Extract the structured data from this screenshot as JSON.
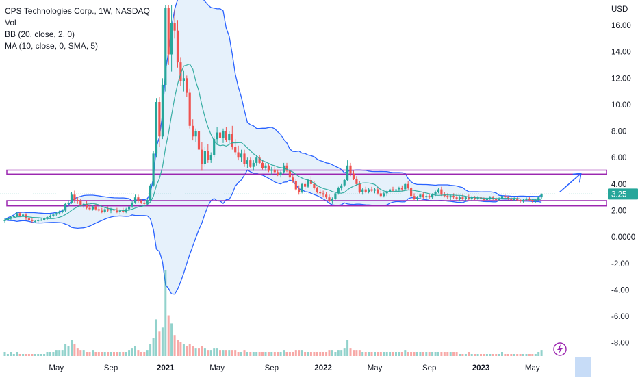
{
  "header": {
    "symbol_line": "CPS Technologies Corp., 1W, NASDAQ",
    "vol_label": "Vol",
    "bb_label": "BB (20, close, 2, 0)",
    "ma_label": "MA (10, close, 0, SMA, 5)"
  },
  "price_axis": {
    "currency": "USD",
    "ticks": [
      "16.00",
      "14.00",
      "12.00",
      "10.00",
      "8.00",
      "6.00",
      "4.00",
      "2.00",
      "0.0000",
      "-2.00",
      "-4.00",
      "-6.00",
      "-8.00"
    ],
    "tick_values": [
      16,
      14,
      12,
      10,
      8,
      6,
      4,
      2,
      0,
      -2,
      -4,
      -6,
      -8
    ],
    "last_price_label": "3.25",
    "last_price": 3.25,
    "ylim": [
      -9.0,
      17.5
    ]
  },
  "time_axis": {
    "labels": [
      "May",
      "Sep",
      "2021",
      "May",
      "Sep",
      "2022",
      "May",
      "Sep",
      "2023",
      "May"
    ],
    "label_weeks": [
      17,
      35,
      53,
      70,
      88,
      105,
      122,
      140,
      157,
      174
    ]
  },
  "colors": {
    "up": "#26a69a",
    "down": "#ef5350",
    "bb_band": "#2962ff",
    "bb_fill": "#e3f0fb",
    "zone": "#9c27b0",
    "arrow": "#2962ff",
    "price_tag": "#26a69a"
  },
  "chart_data": {
    "type": "candlestick",
    "x_unit": "week index (weekly bars)",
    "zones": [
      {
        "low": 4.75,
        "high": 5.05
      },
      {
        "low": 2.35,
        "high": 2.75
      }
    ],
    "projection_arrow": {
      "from_week": 183,
      "from_price": 3.4,
      "to_week": 190,
      "to_price": 4.8
    },
    "bars": [
      [
        1.2,
        1.4,
        1.1,
        1.3,
        2
      ],
      [
        1.3,
        1.5,
        1.2,
        1.4,
        1
      ],
      [
        1.4,
        1.6,
        1.3,
        1.5,
        2
      ],
      [
        1.5,
        1.7,
        1.4,
        1.6,
        1
      ],
      [
        1.6,
        1.9,
        1.5,
        1.8,
        2
      ],
      [
        1.8,
        1.9,
        1.5,
        1.6,
        1
      ],
      [
        1.6,
        1.8,
        1.5,
        1.7,
        1
      ],
      [
        1.7,
        1.8,
        1.3,
        1.4,
        1
      ],
      [
        1.4,
        1.5,
        1.2,
        1.3,
        1
      ],
      [
        1.3,
        1.4,
        1.1,
        1.2,
        1
      ],
      [
        1.2,
        1.3,
        1.1,
        1.2,
        1
      ],
      [
        1.2,
        1.4,
        1.1,
        1.3,
        1
      ],
      [
        1.3,
        1.4,
        1.2,
        1.3,
        1
      ],
      [
        1.3,
        1.5,
        1.2,
        1.4,
        1
      ],
      [
        1.4,
        1.6,
        1.3,
        1.5,
        2
      ],
      [
        1.5,
        1.7,
        1.4,
        1.6,
        2
      ],
      [
        1.6,
        1.8,
        1.5,
        1.7,
        2
      ],
      [
        1.7,
        1.9,
        1.6,
        1.8,
        3
      ],
      [
        1.8,
        2.0,
        1.7,
        1.9,
        3
      ],
      [
        1.9,
        2.1,
        1.8,
        2.0,
        3
      ],
      [
        2.0,
        2.6,
        1.9,
        2.5,
        6
      ],
      [
        2.5,
        2.8,
        2.3,
        2.6,
        5
      ],
      [
        2.6,
        3.4,
        2.5,
        3.2,
        8
      ],
      [
        3.2,
        3.5,
        2.6,
        2.8,
        6
      ],
      [
        2.8,
        3.0,
        2.5,
        2.7,
        4
      ],
      [
        2.7,
        2.9,
        2.3,
        2.4,
        3
      ],
      [
        2.4,
        2.6,
        2.2,
        2.5,
        3
      ],
      [
        2.5,
        2.7,
        2.1,
        2.2,
        2
      ],
      [
        2.2,
        2.4,
        2.0,
        2.1,
        2
      ],
      [
        2.1,
        2.4,
        2.0,
        2.3,
        3
      ],
      [
        2.3,
        2.5,
        2.0,
        2.1,
        2
      ],
      [
        2.1,
        2.3,
        1.9,
        2.0,
        2
      ],
      [
        2.0,
        2.2,
        1.8,
        1.9,
        2
      ],
      [
        1.9,
        2.2,
        1.8,
        2.1,
        2
      ],
      [
        2.1,
        2.3,
        1.9,
        2.0,
        2
      ],
      [
        2.0,
        2.2,
        1.8,
        2.1,
        2
      ],
      [
        2.1,
        2.3,
        1.9,
        2.0,
        2
      ],
      [
        2.0,
        2.2,
        1.8,
        1.9,
        2
      ],
      [
        1.9,
        2.1,
        1.7,
        2.0,
        2
      ],
      [
        2.0,
        2.2,
        1.8,
        1.9,
        2
      ],
      [
        1.9,
        2.2,
        1.8,
        2.1,
        2
      ],
      [
        2.1,
        2.4,
        2.0,
        2.3,
        3
      ],
      [
        2.3,
        2.7,
        2.2,
        2.6,
        4
      ],
      [
        2.6,
        3.2,
        2.5,
        3.0,
        5
      ],
      [
        3.0,
        3.2,
        2.6,
        2.7,
        3
      ],
      [
        2.7,
        2.9,
        2.5,
        2.6,
        2
      ],
      [
        2.6,
        2.8,
        2.4,
        2.5,
        2
      ],
      [
        2.5,
        2.9,
        2.4,
        2.8,
        3
      ],
      [
        2.8,
        4.0,
        2.7,
        3.9,
        6
      ],
      [
        3.9,
        6.5,
        3.8,
        6.3,
        9
      ],
      [
        6.3,
        10.5,
        6.0,
        10.2,
        18
      ],
      [
        10.2,
        10.6,
        6.8,
        7.6,
        12
      ],
      [
        7.6,
        12.0,
        7.4,
        11.5,
        14
      ],
      [
        11.5,
        17.5,
        11.0,
        17.3,
        42
      ],
      [
        17.3,
        17.5,
        13.0,
        13.8,
        20
      ],
      [
        13.8,
        17.5,
        12.5,
        16.2,
        16
      ],
      [
        16.2,
        17.2,
        15.0,
        15.6,
        10
      ],
      [
        15.6,
        16.4,
        12.8,
        13.2,
        8
      ],
      [
        13.2,
        13.6,
        11.4,
        11.8,
        7
      ],
      [
        11.8,
        12.6,
        11.0,
        12.0,
        6
      ],
      [
        12.0,
        12.2,
        10.6,
        10.9,
        5
      ],
      [
        10.9,
        11.2,
        8.2,
        8.4,
        6
      ],
      [
        8.4,
        8.9,
        7.3,
        7.6,
        5
      ],
      [
        7.6,
        8.2,
        7.2,
        8.0,
        4
      ],
      [
        8.0,
        8.3,
        6.4,
        6.6,
        4
      ],
      [
        6.6,
        7.2,
        5.0,
        5.5,
        5
      ],
      [
        5.5,
        6.8,
        5.3,
        6.5,
        4
      ],
      [
        6.5,
        7.0,
        5.6,
        5.8,
        3
      ],
      [
        5.8,
        6.4,
        5.6,
        6.2,
        3
      ],
      [
        6.2,
        7.6,
        6.0,
        7.4,
        4
      ],
      [
        7.4,
        8.3,
        7.0,
        7.9,
        4
      ],
      [
        7.9,
        9.0,
        7.2,
        7.5,
        3
      ],
      [
        7.5,
        8.2,
        7.1,
        8.0,
        3
      ],
      [
        8.0,
        8.3,
        7.2,
        7.3,
        3
      ],
      [
        7.3,
        8.0,
        7.0,
        7.8,
        3
      ],
      [
        7.8,
        8.4,
        6.6,
        6.8,
        3
      ],
      [
        6.8,
        7.4,
        6.2,
        6.4,
        3
      ],
      [
        6.4,
        6.9,
        5.8,
        6.0,
        2
      ],
      [
        6.0,
        6.6,
        5.7,
        6.3,
        2
      ],
      [
        6.3,
        6.6,
        5.3,
        5.5,
        3
      ],
      [
        5.5,
        6.0,
        5.2,
        5.8,
        2
      ],
      [
        5.8,
        6.0,
        5.2,
        5.3,
        2
      ],
      [
        5.3,
        5.8,
        5.0,
        5.6,
        2
      ],
      [
        5.6,
        6.2,
        5.4,
        6.0,
        2
      ],
      [
        6.0,
        6.2,
        5.5,
        5.6,
        2
      ],
      [
        5.6,
        5.8,
        5.1,
        5.2,
        2
      ],
      [
        5.2,
        5.6,
        5.0,
        5.4,
        2
      ],
      [
        5.4,
        5.5,
        4.9,
        5.0,
        2
      ],
      [
        5.0,
        5.3,
        4.7,
        5.1,
        2
      ],
      [
        5.1,
        5.4,
        4.8,
        4.9,
        2
      ],
      [
        4.9,
        5.1,
        4.6,
        4.7,
        2
      ],
      [
        4.7,
        5.0,
        4.5,
        4.9,
        2
      ],
      [
        4.9,
        5.6,
        4.8,
        5.4,
        3
      ],
      [
        5.4,
        5.6,
        4.9,
        5.0,
        2
      ],
      [
        5.0,
        5.2,
        4.4,
        4.5,
        2
      ],
      [
        4.5,
        4.7,
        4.1,
        4.2,
        2
      ],
      [
        4.2,
        4.4,
        3.5,
        3.6,
        3
      ],
      [
        3.6,
        3.9,
        3.2,
        3.4,
        3
      ],
      [
        3.4,
        4.1,
        3.3,
        4.0,
        3
      ],
      [
        4.0,
        4.2,
        3.6,
        3.8,
        2
      ],
      [
        3.8,
        4.4,
        3.7,
        4.3,
        2
      ],
      [
        4.3,
        4.6,
        3.9,
        4.0,
        2
      ],
      [
        4.0,
        4.2,
        3.6,
        3.7,
        2
      ],
      [
        3.7,
        3.8,
        3.3,
        3.4,
        2
      ],
      [
        3.4,
        3.6,
        3.1,
        3.3,
        2
      ],
      [
        3.3,
        3.5,
        3.0,
        3.2,
        2
      ],
      [
        3.2,
        3.4,
        2.9,
        3.0,
        2
      ],
      [
        3.0,
        3.2,
        2.6,
        2.7,
        3
      ],
      [
        2.7,
        3.0,
        2.5,
        2.9,
        3
      ],
      [
        2.9,
        3.4,
        2.8,
        3.3,
        2
      ],
      [
        3.3,
        3.8,
        3.2,
        3.7,
        3
      ],
      [
        3.7,
        4.0,
        3.5,
        3.9,
        3
      ],
      [
        3.9,
        4.4,
        3.8,
        4.3,
        4
      ],
      [
        4.3,
        5.8,
        4.2,
        5.4,
        8
      ],
      [
        5.4,
        5.6,
        4.6,
        4.8,
        4
      ],
      [
        4.8,
        5.0,
        4.3,
        4.4,
        3
      ],
      [
        4.4,
        4.6,
        3.9,
        4.0,
        3
      ],
      [
        4.0,
        4.2,
        3.3,
        3.4,
        3
      ],
      [
        3.4,
        3.7,
        3.2,
        3.6,
        2
      ],
      [
        3.6,
        3.8,
        3.3,
        3.4,
        2
      ],
      [
        3.4,
        3.7,
        3.3,
        3.6,
        2
      ],
      [
        3.6,
        3.8,
        3.4,
        3.5,
        2
      ],
      [
        3.5,
        3.7,
        3.3,
        3.6,
        2
      ],
      [
        3.6,
        3.8,
        3.2,
        3.3,
        2
      ],
      [
        3.3,
        3.5,
        3.0,
        3.1,
        2
      ],
      [
        3.1,
        3.4,
        3.0,
        3.3,
        2
      ],
      [
        3.3,
        3.5,
        3.1,
        3.4,
        2
      ],
      [
        3.4,
        3.7,
        3.3,
        3.6,
        2
      ],
      [
        3.6,
        3.8,
        3.4,
        3.5,
        2
      ],
      [
        3.5,
        3.7,
        3.3,
        3.6,
        2
      ],
      [
        3.6,
        3.8,
        3.4,
        3.7,
        2
      ],
      [
        3.7,
        3.9,
        3.5,
        3.6,
        2
      ],
      [
        3.6,
        4.1,
        3.5,
        4.0,
        3
      ],
      [
        4.0,
        4.2,
        3.6,
        3.7,
        2
      ],
      [
        3.7,
        3.8,
        3.0,
        3.1,
        2
      ],
      [
        3.1,
        3.3,
        2.8,
        2.9,
        2
      ],
      [
        2.9,
        3.1,
        2.7,
        3.0,
        2
      ],
      [
        3.0,
        3.3,
        2.9,
        3.2,
        2
      ],
      [
        3.2,
        3.4,
        2.9,
        3.0,
        2
      ],
      [
        3.0,
        3.2,
        2.8,
        3.1,
        2
      ],
      [
        3.1,
        3.3,
        2.9,
        3.0,
        2
      ],
      [
        3.0,
        3.3,
        2.9,
        3.2,
        2
      ],
      [
        3.2,
        3.5,
        3.1,
        3.4,
        2
      ],
      [
        3.4,
        3.7,
        3.3,
        3.6,
        2
      ],
      [
        3.6,
        3.8,
        3.1,
        3.2,
        2
      ],
      [
        3.2,
        3.4,
        3.0,
        3.1,
        2
      ],
      [
        3.1,
        3.3,
        2.9,
        3.0,
        2
      ],
      [
        3.0,
        3.2,
        2.8,
        3.1,
        2
      ],
      [
        3.1,
        3.3,
        2.9,
        3.0,
        2
      ],
      [
        3.0,
        3.2,
        2.8,
        2.9,
        2
      ],
      [
        2.9,
        3.1,
        2.7,
        3.0,
        1
      ],
      [
        3.0,
        3.2,
        2.8,
        2.9,
        1
      ],
      [
        2.9,
        3.1,
        2.7,
        3.0,
        1
      ],
      [
        3.0,
        3.2,
        2.8,
        2.9,
        2
      ],
      [
        2.9,
        3.1,
        2.7,
        3.0,
        1
      ],
      [
        3.0,
        3.1,
        2.8,
        2.9,
        1
      ],
      [
        2.9,
        3.1,
        2.8,
        3.0,
        1
      ],
      [
        3.0,
        3.1,
        2.8,
        2.9,
        1
      ],
      [
        2.9,
        3.0,
        2.7,
        2.8,
        1
      ],
      [
        2.8,
        3.0,
        2.7,
        2.9,
        1
      ],
      [
        2.9,
        3.1,
        2.8,
        3.0,
        1
      ],
      [
        3.0,
        3.1,
        2.8,
        2.9,
        1
      ],
      [
        2.9,
        3.0,
        2.7,
        2.8,
        1
      ],
      [
        2.8,
        3.0,
        2.7,
        2.9,
        1
      ],
      [
        2.9,
        3.2,
        2.8,
        3.1,
        2
      ],
      [
        3.1,
        3.2,
        2.9,
        3.0,
        1
      ],
      [
        3.0,
        3.1,
        2.8,
        2.9,
        1
      ],
      [
        2.9,
        3.0,
        2.7,
        2.8,
        1
      ],
      [
        2.8,
        3.0,
        2.7,
        2.9,
        1
      ],
      [
        2.9,
        3.0,
        2.7,
        2.8,
        1
      ],
      [
        2.8,
        2.9,
        2.6,
        2.7,
        1
      ],
      [
        2.7,
        2.9,
        2.6,
        2.8,
        1
      ],
      [
        2.8,
        3.0,
        2.7,
        2.9,
        1
      ],
      [
        2.9,
        3.0,
        2.7,
        2.8,
        1
      ],
      [
        2.8,
        2.9,
        2.6,
        2.7,
        1
      ],
      [
        2.7,
        2.9,
        2.6,
        2.8,
        1
      ],
      [
        2.8,
        3.1,
        2.7,
        3.0,
        2
      ],
      [
        3.0,
        3.3,
        2.9,
        3.25,
        3
      ]
    ]
  }
}
